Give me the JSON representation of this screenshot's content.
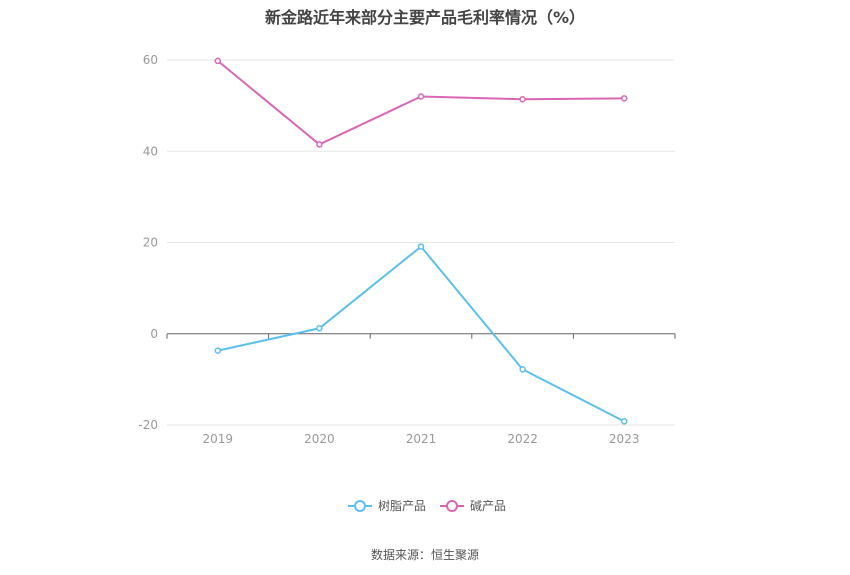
{
  "chart_data": {
    "type": "line",
    "title": "新金路近年来部分主要产品毛利率情况（%）",
    "x": [
      "2019",
      "2020",
      "2021",
      "2022",
      "2023"
    ],
    "ylim": [
      -20,
      60
    ],
    "yticks": [
      60,
      40,
      20,
      0,
      -20
    ],
    "grid": true,
    "legend_position": "bottom-center",
    "series": [
      {
        "name": "树脂产品",
        "color": "#5bc0eb",
        "values": [
          -3.7,
          1.2,
          19.1,
          -7.8,
          -19.2
        ]
      },
      {
        "name": "碱产品",
        "color": "#d966b3",
        "values": [
          59.8,
          41.5,
          52.0,
          51.4,
          51.6
        ]
      }
    ]
  },
  "source": "数据来源：恒生聚源",
  "colors": {
    "grid": "#e6e6e6",
    "axis": "#666666",
    "tick_text": "#999999",
    "legend_text": "#555555"
  }
}
